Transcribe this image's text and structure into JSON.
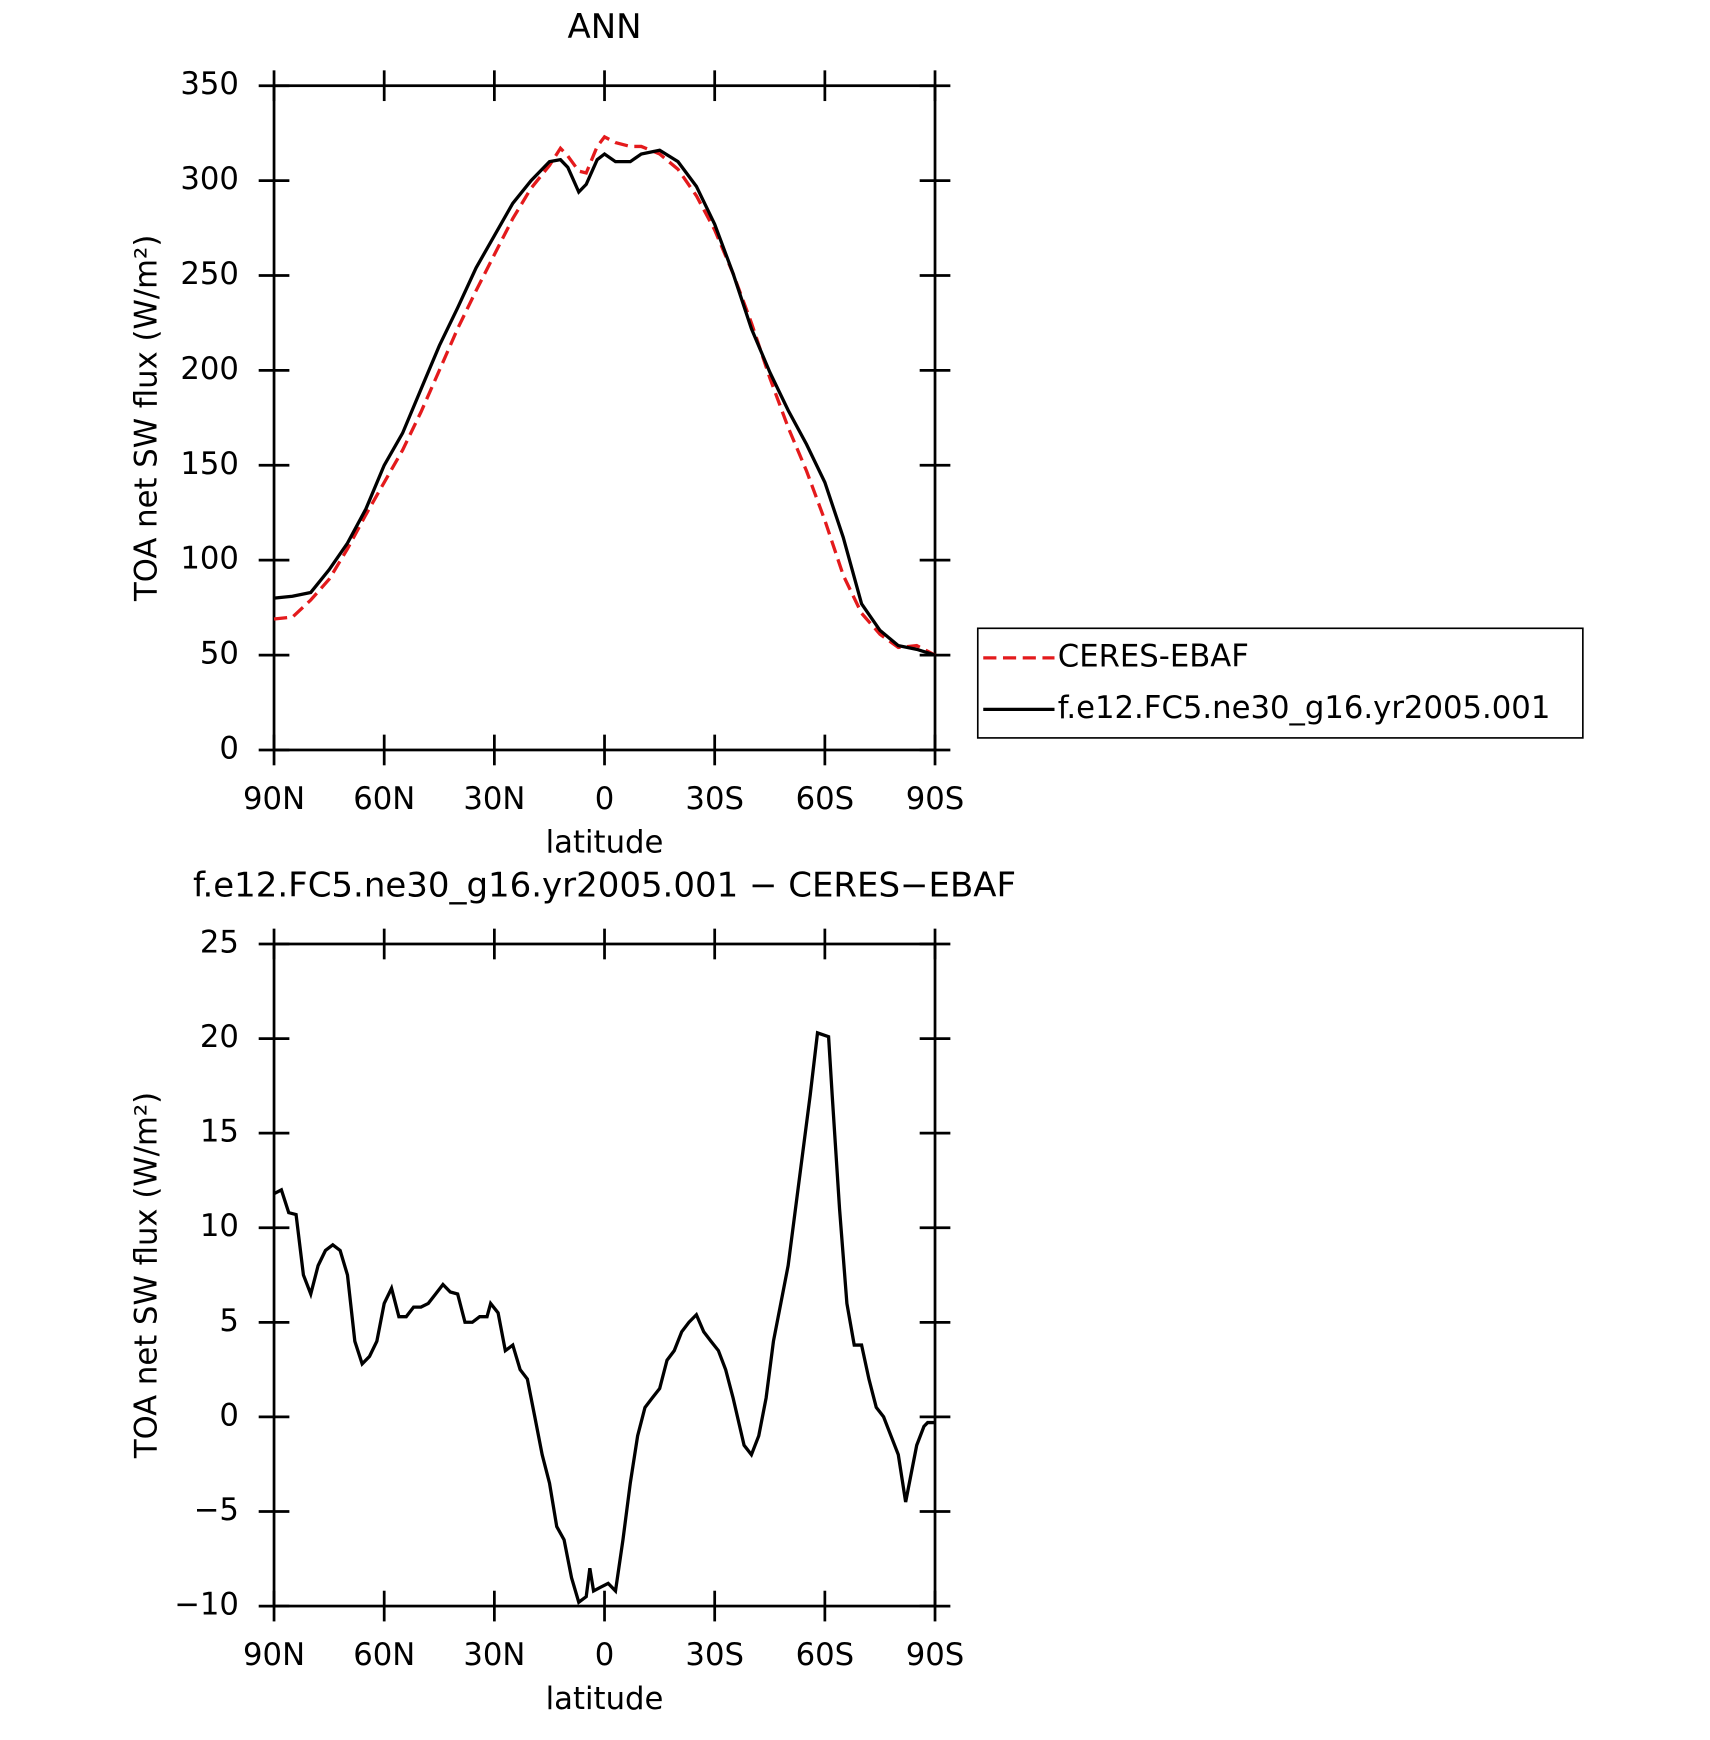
{
  "chart_data": [
    {
      "type": "line",
      "title": "ANN",
      "xlabel": "latitude",
      "ylabel": "TOA net SW flux (W/m²)",
      "x": [
        90,
        85,
        80,
        75,
        70,
        65,
        60,
        55,
        50,
        45,
        40,
        35,
        30,
        25,
        20,
        15,
        12,
        10,
        7,
        5,
        2,
        0,
        -3,
        -7,
        -10,
        -15,
        -20,
        -25,
        -30,
        -35,
        -40,
        -45,
        -50,
        -55,
        -60,
        -65,
        -70,
        -75,
        -80,
        -85,
        -90
      ],
      "series": [
        {
          "name": "CERES-EBAF",
          "color": "#e41a1c",
          "dash": true,
          "values": [
            69,
            70,
            79,
            90,
            106,
            124,
            141,
            158,
            178,
            200,
            222,
            242,
            261,
            280,
            296,
            308,
            317,
            313,
            305,
            304,
            318,
            323,
            320,
            318,
            318,
            314,
            306,
            292,
            274,
            251,
            225,
            196,
            170,
            147,
            121,
            92,
            72,
            61,
            54,
            55,
            50
          ]
        },
        {
          "name": "f.e12.FC5.ne30_g16.yr2005.001",
          "color": "#000000",
          "dash": false,
          "values": [
            80,
            81,
            83,
            95,
            109,
            127,
            150,
            167,
            190,
            213,
            233,
            254,
            271,
            288,
            300,
            310,
            311,
            307,
            294,
            298,
            311,
            314,
            310,
            310,
            314,
            316,
            310,
            297,
            277,
            251,
            222,
            199,
            179,
            161,
            141,
            112,
            77,
            63,
            55,
            53,
            50
          ]
        }
      ],
      "xlim": [
        90,
        -90
      ],
      "xticks": [
        {
          "value": 90,
          "label": "90N"
        },
        {
          "value": 60,
          "label": "60N"
        },
        {
          "value": 30,
          "label": "30N"
        },
        0,
        {
          "value": -30,
          "label": "30S"
        },
        {
          "value": -60,
          "label": "60S"
        },
        {
          "value": -90,
          "label": "90S"
        }
      ],
      "ylim": [
        0,
        350
      ],
      "yticks": [
        0,
        50,
        100,
        150,
        200,
        250,
        300,
        350
      ],
      "legend": "outside-right"
    },
    {
      "type": "line",
      "title": "f.e12.FC5.ne30_g16.yr2005.001 − CERES−EBAF",
      "xlabel": "latitude",
      "ylabel": "TOA net SW flux (W/m²)",
      "x": [
        90,
        88,
        86,
        84,
        82,
        80,
        78,
        76,
        74,
        72,
        70,
        68,
        66,
        64,
        62,
        60,
        58,
        56,
        54,
        52,
        50,
        48,
        46,
        44,
        42,
        40,
        38,
        36,
        34,
        32,
        31,
        29,
        27,
        25,
        23,
        21,
        19,
        17,
        15,
        13,
        11,
        9,
        7,
        5,
        4,
        3,
        1,
        -1,
        -3,
        -5,
        -7,
        -9,
        -11,
        -13,
        -15,
        -17,
        -19,
        -21,
        -23,
        -25,
        -27,
        -29,
        -31,
        -33,
        -35,
        -38,
        -40,
        -42,
        -44,
        -46,
        -48,
        -50,
        -52,
        -54,
        -56,
        -58,
        -61,
        -62,
        -64,
        -66,
        -68,
        -70,
        -72,
        -74,
        -76,
        -78,
        -80,
        -82,
        -85,
        -87,
        -88,
        -90
      ],
      "series": [
        {
          "color": "#000000",
          "dash": false,
          "values": [
            11.8,
            12.0,
            10.8,
            10.7,
            7.5,
            6.5,
            8,
            8.8,
            9.1,
            8.8,
            7.5,
            4,
            2.8,
            3.2,
            4,
            6,
            6.8,
            5.3,
            5.3,
            5.8,
            5.8,
            6,
            6.5,
            7,
            6.6,
            6.5,
            5,
            5,
            5.3,
            5.3,
            6,
            5.5,
            3.5,
            3.8,
            2.5,
            2,
            0,
            -2,
            -3.5,
            -5.8,
            -6.5,
            -8.5,
            -9.8,
            -9.5,
            -8,
            -9.2,
            -9,
            -8.8,
            -9.2,
            -6.5,
            -3.5,
            -1,
            0.5,
            1,
            1.5,
            3,
            3.5,
            4.5,
            5,
            5.4,
            4.5,
            4,
            3.5,
            2.5,
            1,
            -1.5,
            -2,
            -1,
            1,
            4,
            6,
            8,
            11,
            14,
            17,
            20.3,
            20.1,
            17,
            11,
            6,
            3.8,
            3.8,
            2,
            0.5,
            0,
            -1,
            -2,
            -4.5,
            -1.5,
            -0.5,
            -0.3,
            -0.3
          ]
        }
      ],
      "xlim": [
        90,
        -90
      ],
      "xticks": [
        {
          "value": 90,
          "label": "90N"
        },
        {
          "value": 60,
          "label": "60N"
        },
        {
          "value": 30,
          "label": "30N"
        },
        0,
        {
          "value": -30,
          "label": "30S"
        },
        {
          "value": -60,
          "label": "60S"
        },
        {
          "value": -90,
          "label": "90S"
        }
      ],
      "ylim": [
        -10,
        25
      ],
      "yticks": [
        {
          "value": -10,
          "label": "−10"
        },
        {
          "value": -5,
          "label": "−5"
        },
        0,
        5,
        10,
        15,
        20,
        25
      ]
    }
  ]
}
